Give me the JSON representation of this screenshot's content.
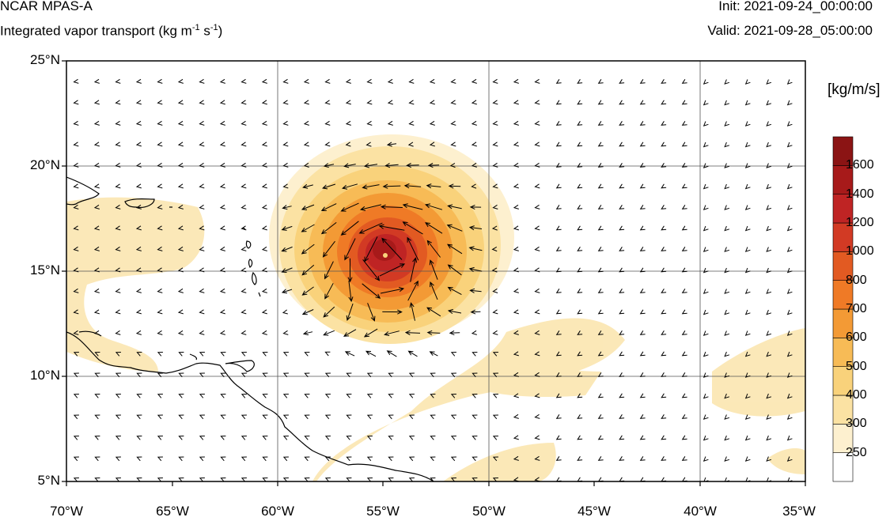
{
  "header": {
    "model_title": "NCAR MPAS-A",
    "variable_title": "Integrated vapor transport (kg m",
    "variable_exp1": "-1",
    "variable_mid": " s",
    "variable_exp2": "-1",
    "variable_end": ")",
    "init": "Init: 2021-09-24_00:00:00",
    "valid": "Valid: 2021-09-28_05:00:00"
  },
  "axes": {
    "latitude_labels": [
      "25°N",
      "20°N",
      "15°N",
      "10°N",
      "5°N"
    ],
    "longitude_labels": [
      "70°W",
      "65°W",
      "60°W",
      "55°W",
      "50°W",
      "45°W",
      "40°W",
      "35°W"
    ],
    "lat_range": [
      5,
      25
    ],
    "lon_range": [
      -70,
      -35
    ],
    "grid": true
  },
  "colorbar": {
    "units": "[kg/m/s]",
    "levels": [
      "250",
      "300",
      "400",
      "500",
      "600",
      "700",
      "800",
      "1000",
      "1200",
      "1400",
      "1600"
    ],
    "colors": [
      "#ffffff",
      "#fdf0cf",
      "#fbe2a3",
      "#f9d27b",
      "#f7bb56",
      "#f39a35",
      "#ef7a26",
      "#e25a22",
      "#d23a24",
      "#bf2424",
      "#a71a1a",
      "#8b1414"
    ]
  },
  "map_features": {
    "cyclone_center": {
      "lon": -54.5,
      "lat": 15.8
    },
    "vector_field": "vapor-transport-arrows",
    "coastline": "lesser-antilles-and-south-america"
  }
}
